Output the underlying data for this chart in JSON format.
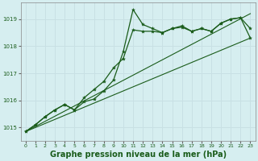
{
  "background_color": "#d6eef0",
  "grid_color": "#c8e0e4",
  "line_color": "#1a5c1a",
  "xlabel": "Graphe pression niveau de la mer (hPa)",
  "xlabel_fontsize": 7,
  "xlim": [
    -0.5,
    23.5
  ],
  "ylim": [
    1014.5,
    1019.6
  ],
  "yticks": [
    1015,
    1016,
    1017,
    1018,
    1019
  ],
  "xticks": [
    0,
    1,
    2,
    3,
    4,
    5,
    6,
    7,
    8,
    9,
    10,
    11,
    12,
    13,
    14,
    15,
    16,
    17,
    18,
    19,
    20,
    21,
    22,
    23
  ],
  "series": [
    {
      "x": [
        0,
        1,
        2,
        3,
        4,
        5,
        6,
        7,
        8,
        9,
        10,
        11,
        12,
        13,
        14,
        15,
        16,
        17,
        18,
        19,
        20,
        21,
        22,
        23
      ],
      "y": [
        1014.85,
        1015.1,
        1015.4,
        1015.65,
        1015.85,
        1015.65,
        1015.95,
        1016.05,
        1016.35,
        1016.75,
        1017.8,
        1019.35,
        1018.8,
        1018.65,
        1018.5,
        1018.65,
        1018.75,
        1018.55,
        1018.65,
        1018.55,
        1018.85,
        1019.0,
        1019.05,
        1018.65
      ],
      "markers": true,
      "lw": 0.9
    },
    {
      "x": [
        0,
        1,
        2,
        3,
        4,
        5,
        6,
        7,
        8,
        9,
        10,
        11,
        12,
        13,
        14,
        15,
        16,
        17,
        18,
        19,
        20,
        21,
        22,
        23
      ],
      "y": [
        1014.85,
        1015.1,
        1015.4,
        1015.65,
        1015.85,
        1015.65,
        1016.1,
        1016.4,
        1016.7,
        1017.2,
        1017.55,
        1018.6,
        1018.55,
        1018.55,
        1018.5,
        1018.65,
        1018.7,
        1018.55,
        1018.65,
        1018.55,
        1018.85,
        1019.0,
        1019.05,
        1018.3
      ],
      "markers": true,
      "lw": 0.9
    },
    {
      "x": [
        0,
        23
      ],
      "y": [
        1014.85,
        1019.2
      ],
      "markers": false,
      "lw": 0.8
    },
    {
      "x": [
        0,
        23
      ],
      "y": [
        1014.85,
        1018.3
      ],
      "markers": false,
      "lw": 0.8
    }
  ]
}
